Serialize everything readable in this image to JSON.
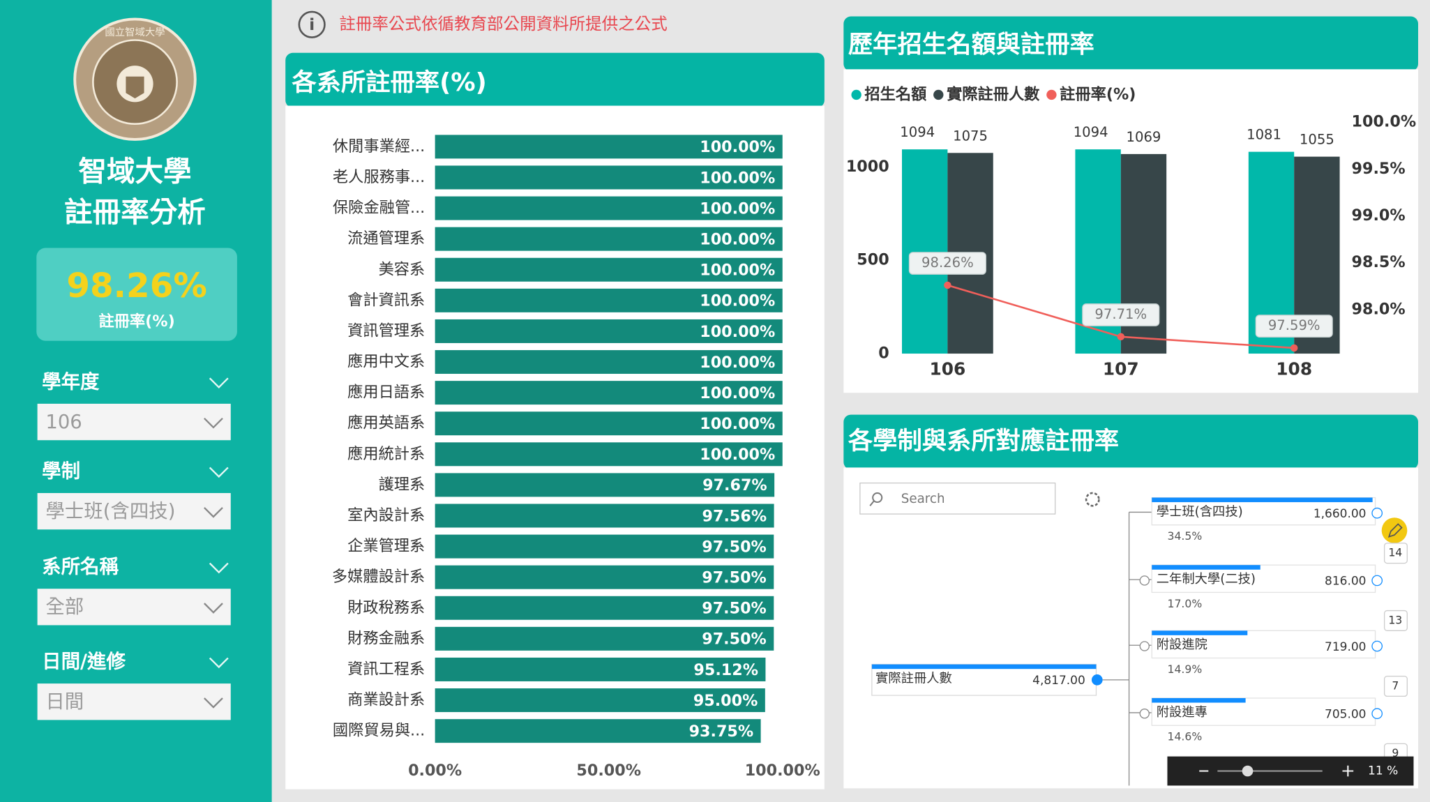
{
  "sidebar": {
    "logo_text": "國立智域大學",
    "title": [
      "智域大學",
      "註冊率分析"
    ],
    "kpi": {
      "value": "98.26%",
      "label": "註冊率(%)"
    },
    "filters": [
      {
        "label": "學年度",
        "value": "106"
      },
      {
        "label": "學制",
        "value": "學士班(含四技)"
      },
      {
        "label": "系所名稱",
        "value": "全部"
      },
      {
        "label": "日間/進修",
        "value": "日間"
      }
    ]
  },
  "notice": "註冊率公式依循教育部公開資料所提供之公式",
  "chart_data": [
    {
      "type": "bar",
      "orientation": "horizontal",
      "title": "各系所註冊率(%)",
      "categories": [
        "休閒事業經...",
        "老人服務事...",
        "保險金融管...",
        "流通管理系",
        "美容系",
        "會計資訊系",
        "資訊管理系",
        "應用中文系",
        "應用日語系",
        "應用英語系",
        "應用統計系",
        "護理系",
        "室內設計系",
        "企業管理系",
        "多媒體設計系",
        "財政稅務系",
        "財務金融系",
        "資訊工程系",
        "商業設計系",
        "國際貿易與..."
      ],
      "values": [
        100,
        100,
        100,
        100,
        100,
        100,
        100,
        100,
        100,
        100,
        100,
        97.67,
        97.56,
        97.5,
        97.5,
        97.5,
        97.5,
        95.12,
        95,
        93.75
      ],
      "value_labels": [
        "100.00%",
        "100.00%",
        "100.00%",
        "100.00%",
        "100.00%",
        "100.00%",
        "100.00%",
        "100.00%",
        "100.00%",
        "100.00%",
        "100.00%",
        "97.67%",
        "97.56%",
        "97.50%",
        "97.50%",
        "97.50%",
        "97.50%",
        "95.12%",
        "95.00%",
        "93.75%"
      ],
      "color": "#138a7b",
      "xlim": [
        0,
        100
      ],
      "xticks": [
        {
          "value": 0,
          "label": "0.00%"
        },
        {
          "value": 50,
          "label": "50.00%"
        },
        {
          "value": 100,
          "label": "100.00%"
        }
      ],
      "grid": false
    },
    {
      "type": "combo",
      "title": "歷年招生名額與註冊率",
      "categories": [
        "106",
        "107",
        "108"
      ],
      "series": [
        {
          "name": "招生名額",
          "type": "bar",
          "color": "#01b8aa",
          "values": [
            1094,
            1094,
            1081
          ]
        },
        {
          "name": "實際註冊人數",
          "type": "bar",
          "color": "#374649",
          "values": [
            1075,
            1069,
            1055
          ]
        },
        {
          "name": "註冊率(%)",
          "type": "line",
          "axis": "y2",
          "color": "#f05f5a",
          "values": [
            98.26,
            97.71,
            97.59
          ],
          "value_labels": [
            "98.26%",
            "97.71%",
            "97.59%"
          ]
        }
      ],
      "ylim": [
        0,
        1240
      ],
      "yticks": [
        0,
        500,
        1000
      ],
      "y2lim": [
        97.53,
        100
      ],
      "y2ticks": [
        {
          "value": 98,
          "label": "98.0%"
        },
        {
          "value": 98.5,
          "label": "98.5%"
        },
        {
          "value": 99,
          "label": "99.0%"
        },
        {
          "value": 99.5,
          "label": "99.5%"
        },
        {
          "value": 100,
          "label": "100.0%"
        }
      ],
      "legend": "top-left",
      "grid": false
    }
  ],
  "decomposition_tree": {
    "title": "各學制與系所對應註冊率",
    "search_placeholder": "Search",
    "root": {
      "label": "實際註冊人數",
      "value": 4817,
      "value_label": "4,817.00"
    },
    "children": [
      {
        "label": "學士班(含四技)",
        "value": 1660,
        "value_label": "1,660.00",
        "share": "34.5%",
        "count": "14"
      },
      {
        "label": "二年制大學(二技)",
        "value": 816,
        "value_label": "816.00",
        "share": "17.0%",
        "count": "13"
      },
      {
        "label": "附設進院",
        "value": 719,
        "value_label": "719.00",
        "share": "14.9%",
        "count": "7"
      },
      {
        "label": "附設進專",
        "value": 705,
        "value_label": "705.00",
        "share": "14.6%",
        "count": "9"
      }
    ],
    "zoom": "11 %"
  }
}
